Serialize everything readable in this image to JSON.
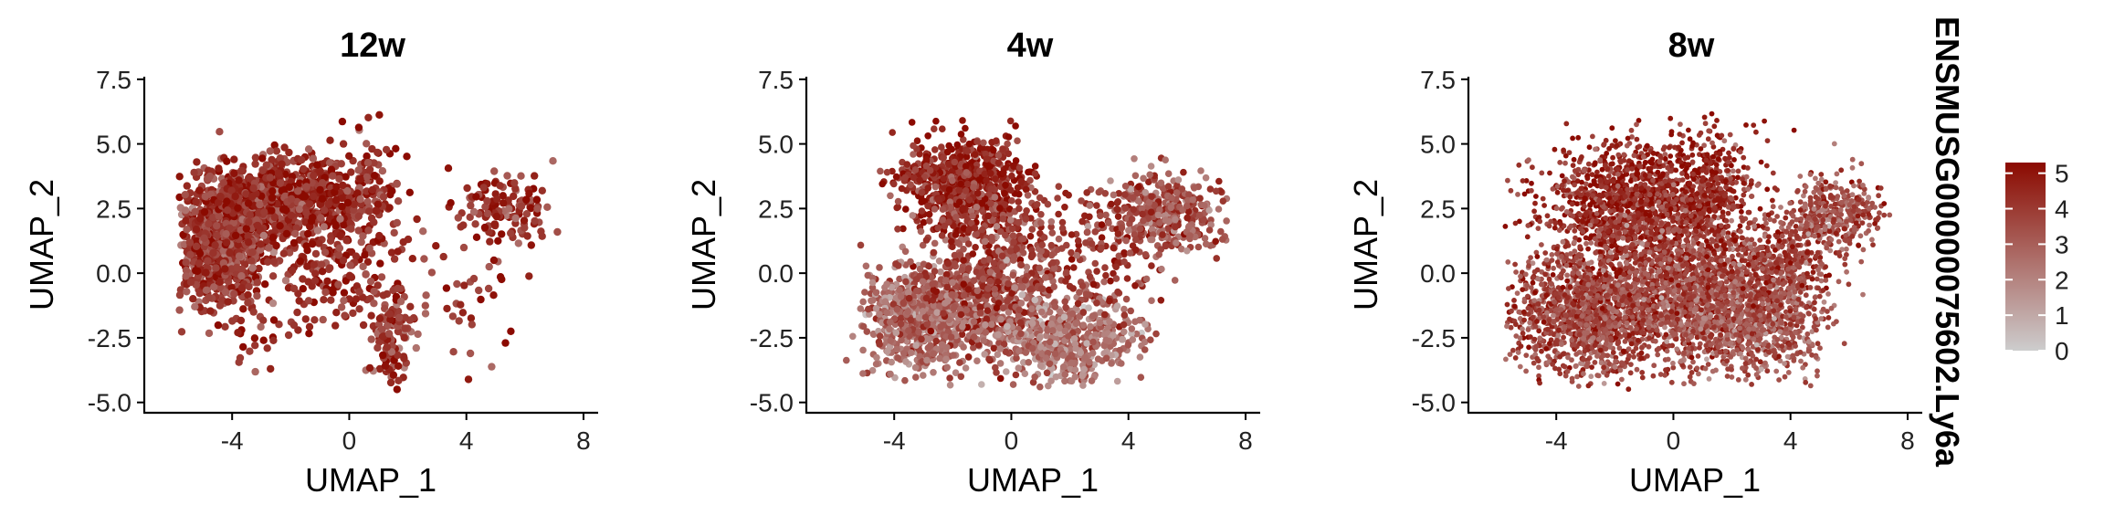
{
  "chart_data": [
    {
      "type": "scatter",
      "title": "12w",
      "xlabel": "UMAP_1",
      "ylabel": "UMAP_2",
      "xlim": [
        -7,
        8.5
      ],
      "ylim": [
        -5.4,
        7.6
      ],
      "xticks": [
        -4,
        0,
        4,
        8
      ],
      "yticks": [
        -5.0,
        -2.5,
        0.0,
        2.5,
        5.0,
        7.5
      ],
      "xtick_labels": [
        "-4",
        "0",
        "4",
        "8"
      ],
      "ytick_labels": [
        "-5.0",
        "-2.5",
        "0.0",
        "2.5",
        "5.0",
        "7.5"
      ],
      "point_size": 4.2,
      "clusters": [
        {
          "cx": -4.3,
          "cy": 1.3,
          "sx": 0.75,
          "sy": 1.25,
          "n": 950,
          "mean": 4.1
        },
        {
          "cx": -2.6,
          "cy": 3.0,
          "sx": 0.9,
          "sy": 0.65,
          "n": 420,
          "mean": 4.4
        },
        {
          "cx": -1.0,
          "cy": 2.4,
          "sx": 1.0,
          "sy": 1.1,
          "n": 260,
          "mean": 4.5
        },
        {
          "cx": 0.5,
          "cy": 3.3,
          "sx": 0.7,
          "sy": 1.0,
          "n": 120,
          "mean": 4.3
        },
        {
          "cx": -0.3,
          "cy": -0.2,
          "sx": 1.4,
          "sy": 1.1,
          "n": 170,
          "mean": 4.4
        },
        {
          "cx": 1.4,
          "cy": -2.6,
          "sx": 0.35,
          "sy": 0.85,
          "n": 110,
          "mean": 3.9
        },
        {
          "cx": 5.3,
          "cy": 2.6,
          "sx": 0.8,
          "sy": 0.65,
          "n": 130,
          "mean": 4.2
        },
        {
          "cx": 4.3,
          "cy": -0.8,
          "sx": 1.0,
          "sy": 1.2,
          "n": 35,
          "mean": 4.0
        },
        {
          "cx": -3.0,
          "cy": -2.8,
          "sx": 0.7,
          "sy": 0.6,
          "n": 18,
          "mean": 4.0
        }
      ]
    },
    {
      "type": "scatter",
      "title": "4w",
      "xlabel": "UMAP_1",
      "ylabel": "UMAP_2",
      "xlim": [
        -7,
        8.5
      ],
      "ylim": [
        -5.4,
        7.6
      ],
      "xticks": [
        -4,
        0,
        4,
        8
      ],
      "yticks": [
        -5.0,
        -2.5,
        0.0,
        2.5,
        5.0,
        7.5
      ],
      "xtick_labels": [
        "-4",
        "0",
        "4",
        "8"
      ],
      "ytick_labels": [
        "-5.0",
        "-2.5",
        "0.0",
        "2.5",
        "5.0",
        "7.5"
      ],
      "point_size": 3.8,
      "clusters": [
        {
          "cx": -1.5,
          "cy": 3.3,
          "sx": 1.0,
          "sy": 0.95,
          "n": 700,
          "mean": 4.5
        },
        {
          "cx": -3.0,
          "cy": -1.8,
          "sx": 1.0,
          "sy": 1.0,
          "n": 650,
          "mean": 2.7
        },
        {
          "cx": -0.6,
          "cy": -0.2,
          "sx": 1.4,
          "sy": 1.4,
          "n": 600,
          "mean": 3.6
        },
        {
          "cx": 1.9,
          "cy": -2.6,
          "sx": 1.2,
          "sy": 0.8,
          "n": 520,
          "mean": 2.4
        },
        {
          "cx": 5.2,
          "cy": 2.3,
          "sx": 1.0,
          "sy": 0.75,
          "n": 340,
          "mean": 3.4
        },
        {
          "cx": 2.6,
          "cy": 0.5,
          "sx": 1.3,
          "sy": 1.2,
          "n": 180,
          "mean": 3.8
        },
        {
          "cx": -3.2,
          "cy": 3.8,
          "sx": 0.5,
          "sy": 0.25,
          "n": 60,
          "mean": 4.3
        }
      ]
    },
    {
      "type": "scatter",
      "title": "8w",
      "xlabel": "UMAP_1",
      "ylabel": "UMAP_2",
      "xlim": [
        -7,
        8.5
      ],
      "ylim": [
        -5.4,
        7.6
      ],
      "xticks": [
        -4,
        0,
        4,
        8
      ],
      "yticks": [
        -5.0,
        -2.5,
        0.0,
        2.5,
        5.0,
        7.5
      ],
      "xtick_labels": [
        "-4",
        "0",
        "4",
        "8"
      ],
      "ytick_labels": [
        "-5.0",
        "-2.5",
        "0.0",
        "2.5",
        "5.0",
        "7.5"
      ],
      "point_size": 2.9,
      "clusters": [
        {
          "cx": -1.2,
          "cy": 2.6,
          "sx": 1.5,
          "sy": 1.2,
          "n": 1400,
          "mean": 4.5
        },
        {
          "cx": -3.0,
          "cy": -1.5,
          "sx": 1.3,
          "sy": 1.2,
          "n": 1300,
          "mean": 3.7
        },
        {
          "cx": 0.3,
          "cy": -0.8,
          "sx": 1.5,
          "sy": 1.4,
          "n": 1300,
          "mean": 3.6
        },
        {
          "cx": 2.7,
          "cy": -1.8,
          "sx": 1.2,
          "sy": 1.0,
          "n": 800,
          "mean": 3.2
        },
        {
          "cx": 5.4,
          "cy": 2.3,
          "sx": 0.9,
          "sy": 0.7,
          "n": 380,
          "mean": 3.4
        },
        {
          "cx": 1.3,
          "cy": 3.4,
          "sx": 0.7,
          "sy": 1.1,
          "n": 300,
          "mean": 4.4
        },
        {
          "cx": 3.6,
          "cy": 0.3,
          "sx": 1.0,
          "sy": 0.9,
          "n": 400,
          "mean": 3.8
        }
      ]
    }
  ],
  "colors": {
    "low": "#cdcdcd",
    "high": "#8b0a00",
    "axis": "#000000"
  },
  "legend": {
    "title": "ENSMUSG00000075602.Ly6a",
    "min": 0,
    "max": 5.3,
    "ticks": [
      0,
      1,
      2,
      3,
      4,
      5
    ],
    "tick_labels": [
      "0",
      "1",
      "2",
      "3",
      "4",
      "5"
    ],
    "placement": "right"
  }
}
